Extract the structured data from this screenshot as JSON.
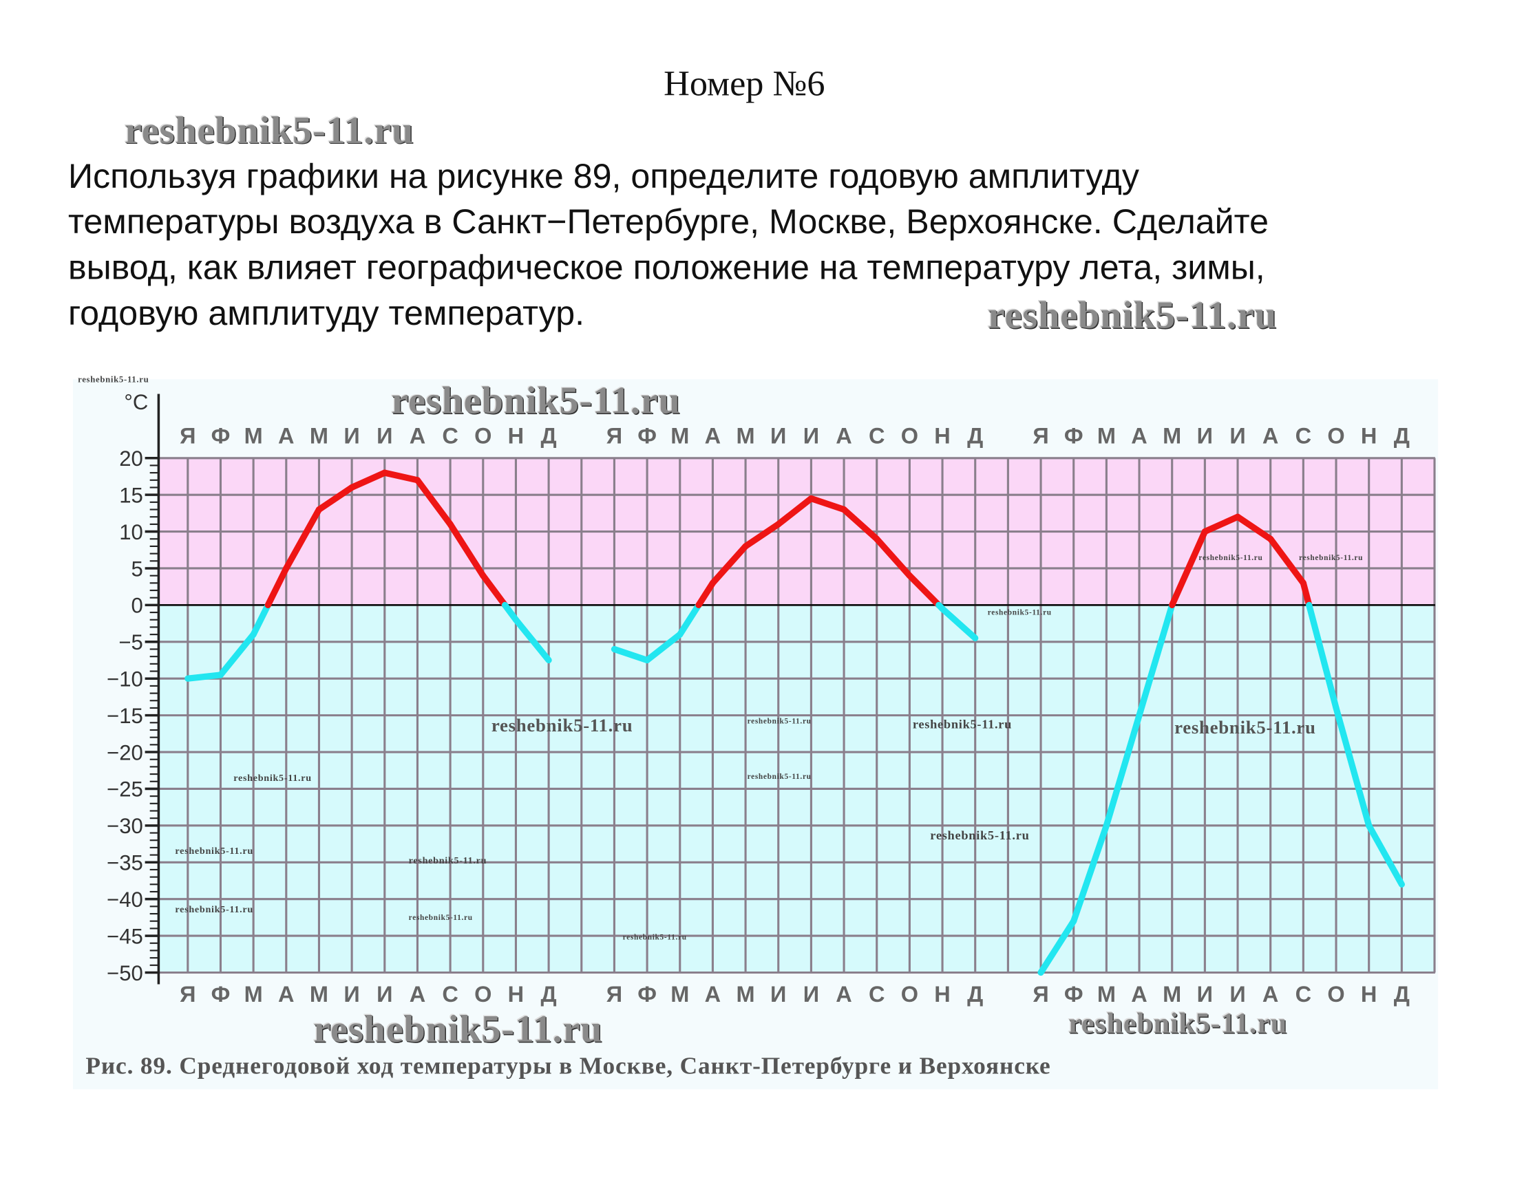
{
  "header": {
    "title": "Номер №6",
    "task_lines": [
      "Используя графики на рисунке 89, определите годовую амплитуду",
      "температуры воздуха в Санкт−Петербурге, Москве, Верхоянске. Сделайте",
      "вывод, как влияет географическое положение на температуру лета, зимы,",
      "годовую амплитуду температур."
    ]
  },
  "watermark": "reshebnik5-11.ru",
  "colors": {
    "positive": "#ee1515",
    "negative": "#22e6f0",
    "pink_zone": "#fbd7f7",
    "cyan_zone": "#d6fafc",
    "grid": "#8a7f8c"
  },
  "chart_data": {
    "type": "line",
    "title": "Рис. 89. Среднегодовой ход температуры в Москве, Санкт-Петербурге и Верхоянске",
    "ylabel": "°C",
    "ylim": [
      -50,
      20
    ],
    "yticks": [
      "20",
      "15",
      "10",
      "5",
      "0",
      "−5",
      "−10",
      "−15",
      "−20",
      "−25",
      "−30",
      "−35",
      "−40",
      "−45",
      "−50"
    ],
    "ytick_values": [
      20,
      15,
      10,
      5,
      0,
      -5,
      -10,
      -15,
      -20,
      -25,
      -30,
      -35,
      -40,
      -45,
      -50
    ],
    "months": [
      "Я",
      "Ф",
      "М",
      "А",
      "М",
      "И",
      "И",
      "А",
      "С",
      "О",
      "Н",
      "Д"
    ],
    "grid": true,
    "series": [
      {
        "name": "Москва",
        "values": [
          -10,
          -9.5,
          -4,
          5,
          13,
          16,
          18,
          17,
          11,
          4,
          -2,
          -7.5
        ]
      },
      {
        "name": "Санкт-Петербург",
        "values": [
          -6,
          -7.5,
          -4,
          3,
          8,
          11,
          14.5,
          13,
          9,
          4,
          -0.5,
          -4.5
        ]
      },
      {
        "name": "Верхоянск",
        "values": [
          -50,
          -43,
          -30,
          -15,
          0,
          10,
          12,
          9,
          3,
          -14,
          -30,
          -38
        ]
      }
    ]
  }
}
